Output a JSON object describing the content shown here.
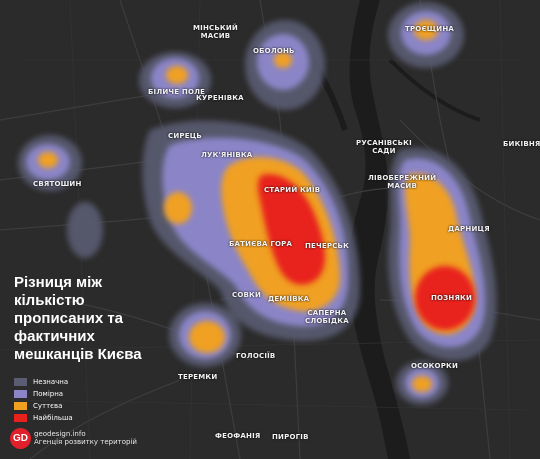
{
  "title": "Різниця між\nкількістю\nпрописаних та\nфактичних\nмешканців Києва",
  "legend": [
    {
      "label": "Незначна",
      "color": "#5a5c72"
    },
    {
      "label": "Помірна",
      "color": "#8b85c8"
    },
    {
      "label": "Суттєва",
      "color": "#f0a020"
    },
    {
      "label": "Найбільша",
      "color": "#e8201e"
    }
  ],
  "credit": {
    "logo": "GD",
    "site": "geodesign.info",
    "org": "Агенція розвитку територій"
  },
  "districts": {
    "troieshchyna": "ТРОЄЩИНА",
    "minskyi_masyv": "МІНСЬКИЙ\nМАСИВ",
    "obolon": "ОБОЛОНЬ",
    "bilychi_pole": "БІЛИЧЕ ПОЛЕ",
    "kurenivka": "КУРЕНІВКА",
    "syrets": "СИРЕЦЬ",
    "lukianivka": "ЛУК'ЯНІВКА",
    "sviatoshyn": "СВЯТОШИН",
    "rusanivski_sady": "РУСАНІВСЬКІ\nСАДИ",
    "bykivnia": "БИКІВНЯ",
    "livoberezhnyi_masyv": "ЛІВОБЕРЕЖНИЙ\nМАСИВ",
    "staryi_kyiv": "СТАРИЙ КИЇВ",
    "darnytsia": "ДАРНИЦЯ",
    "batyieva_hora": "БАТИЄВА ГОРА",
    "pechersk": "ПЕЧЕРСЬК",
    "pozniaky": "ПОЗНЯКИ",
    "sovky": "СОВКИ",
    "demiivka": "ДЕМІЇВКА",
    "saperna_slobidka": "САПЕРНА\nСЛОБІДКА",
    "holosiiv": "ГОЛОСІЇВ",
    "osokorky": "ОСОКОРКИ",
    "teremky": "ТЕРЕМКИ",
    "feofaniia": "ФЕОФАНІЯ",
    "pyrohiv": "ПИРОГІВ"
  }
}
